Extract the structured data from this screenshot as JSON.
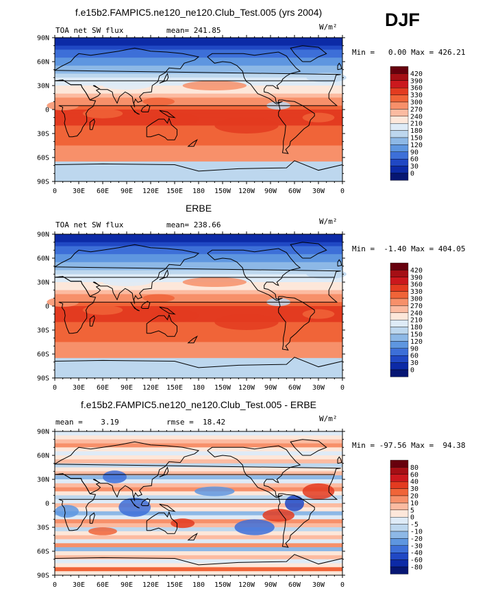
{
  "season": "DJF",
  "panels": [
    {
      "title": "f.e15b2.FAMPIC5.ne120_ne120.Club_Test.005 (yrs 2004)",
      "left_text": "TOA net SW flux",
      "mid_text": "mean= 241.85",
      "unit_text": "W/m²",
      "minmax_text": "Min =   0.00 Max = 426.21",
      "colorbar": {
        "labels": [
          "420",
          "390",
          "360",
          "330",
          "300",
          "270",
          "240",
          "210",
          "180",
          "150",
          "120",
          "90",
          "60",
          "30",
          "0"
        ],
        "colors": [
          "#67000d",
          "#a50f15",
          "#cb181d",
          "#e33b20",
          "#f06438",
          "#f7906a",
          "#fcbba1",
          "#fde7da",
          "#deebf7",
          "#bdd7ee",
          "#8db8e6",
          "#5e96e0",
          "#3d6fd8",
          "#2048c4",
          "#0c2aa6",
          "#061673"
        ]
      },
      "map_kind": "mean"
    },
    {
      "title": "ERBE",
      "left_text": "TOA net SW flux",
      "mid_text": "mean= 238.66",
      "unit_text": "W/m²",
      "minmax_text": "Min =  -1.40 Max = 404.05",
      "colorbar": {
        "labels": [
          "420",
          "390",
          "360",
          "330",
          "300",
          "270",
          "240",
          "210",
          "180",
          "150",
          "120",
          "90",
          "60",
          "30",
          "0"
        ],
        "colors": [
          "#67000d",
          "#a50f15",
          "#cb181d",
          "#e33b20",
          "#f06438",
          "#f7906a",
          "#fcbba1",
          "#fde7da",
          "#deebf7",
          "#bdd7ee",
          "#8db8e6",
          "#5e96e0",
          "#3d6fd8",
          "#2048c4",
          "#0c2aa6",
          "#061673"
        ]
      },
      "map_kind": "mean"
    },
    {
      "title": "f.e15b2.FAMPIC5.ne120_ne120.Club_Test.005 - ERBE",
      "left_text": "mean =    3.19",
      "mid_text": "rmse =  18.42",
      "unit_text": "W/m²",
      "minmax_text": "Min = -97.56 Max =  94.38",
      "colorbar": {
        "labels": [
          "80",
          "60",
          "40",
          "30",
          "20",
          "10",
          "5",
          "0",
          "-5",
          "-10",
          "-20",
          "-30",
          "-40",
          "-60",
          "-80"
        ],
        "colors": [
          "#67000d",
          "#a50f15",
          "#cb181d",
          "#e33b20",
          "#f06438",
          "#f7906a",
          "#fcbba1",
          "#fde7da",
          "#deebf7",
          "#bdd7ee",
          "#8db8e6",
          "#5e96e0",
          "#3d6fd8",
          "#2048c4",
          "#0c2aa6",
          "#061673"
        ]
      },
      "map_kind": "diff"
    }
  ],
  "lat_labels": [
    "90N",
    "60N",
    "30N",
    "0",
    "30S",
    "60S",
    "90S"
  ],
  "lon_labels": [
    "0",
    "30E",
    "60E",
    "90E",
    "120E",
    "150E",
    "180",
    "150W",
    "120W",
    "90W",
    "60W",
    "30W",
    "0"
  ]
}
